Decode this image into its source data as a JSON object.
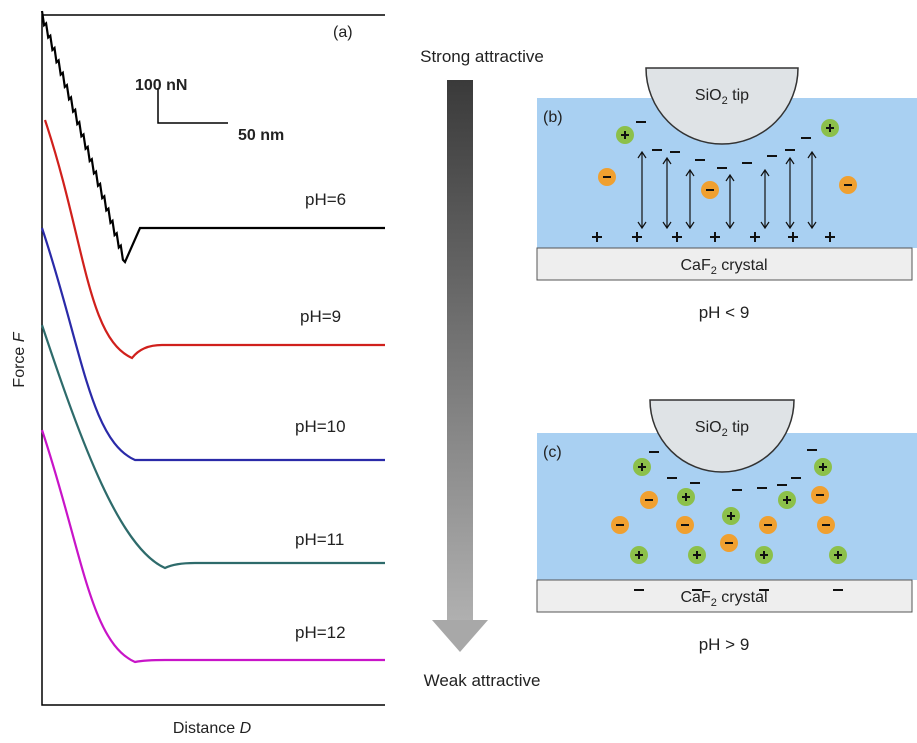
{
  "panel_a": {
    "label": "(a)",
    "scale_force": "100 nN",
    "scale_distance": "50 nm",
    "y_axis": {
      "text": "Force ",
      "var": "F"
    },
    "x_axis": {
      "text": "Distance ",
      "var": "D"
    },
    "curves": [
      {
        "name": "pH=6",
        "color": "#000000"
      },
      {
        "name": "pH=9",
        "color": "#d0201c"
      },
      {
        "name": "pH=10",
        "color": "#2a2aa8"
      },
      {
        "name": "pH=11",
        "color": "#2e6b6b"
      },
      {
        "name": "pH=12",
        "color": "#c814c8"
      }
    ]
  },
  "arrow": {
    "top": "Strong attractive",
    "bottom": "Weak attractive"
  },
  "panel_b": {
    "label": "(b)",
    "tip": {
      "text": "SiO",
      "sub": "2",
      "rest": " tip"
    },
    "crystal": {
      "text": "CaF",
      "sub": "2",
      "rest": " crystal"
    },
    "caption": "pH < 9"
  },
  "panel_c": {
    "label": "(c)",
    "tip": {
      "text": "SiO",
      "sub": "2",
      "rest": " tip"
    },
    "crystal": {
      "text": "CaF",
      "sub": "2",
      "rest": " crystal"
    },
    "caption": "pH > 9"
  }
}
